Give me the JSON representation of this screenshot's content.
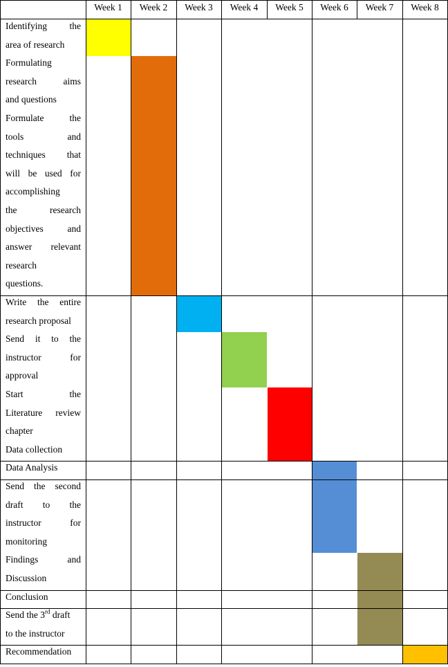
{
  "weeks": [
    "Week 1",
    "Week 2",
    "Week 3",
    "Week 4",
    "Week 5",
    "Week 6",
    "Week 7",
    "Week 8"
  ],
  "tasks": [
    {
      "lines": [
        "Identifying the",
        "area of research"
      ]
    },
    {
      "lines": [
        "Formulating",
        "research aims",
        "and questions"
      ]
    },
    {
      "lines": [
        "Formulate the",
        "tools and",
        "techniques that",
        "will be used for",
        "accomplishing",
        "the research",
        "objectives and",
        "answer relevant",
        "research",
        "questions."
      ]
    },
    {
      "lines": [
        "Write the entire",
        "research proposal"
      ]
    },
    {
      "lines": [
        "Send it to the",
        "instructor for",
        "approval"
      ]
    },
    {
      "lines": [
        "Start the",
        "Literature review",
        "chapter"
      ]
    },
    {
      "lines": [
        "Data collection"
      ]
    },
    {
      "lines": [
        "Data Analysis"
      ]
    },
    {
      "lines": [
        "Send the second",
        "draft to the",
        "instructor for",
        "monitoring"
      ]
    },
    {
      "lines": [
        "Findings and",
        "Discussion"
      ]
    },
    {
      "lines": [
        "Conclusion"
      ]
    },
    {
      "lines": [
        "Send the 3",
        "to the instructor"
      ],
      "sup": "rd",
      "sup_suffix": " draft"
    },
    {
      "lines": [
        "Recommendation"
      ]
    }
  ],
  "bars": [
    {
      "tasks": [
        0
      ],
      "week": 1,
      "color": "#ffff00"
    },
    {
      "tasks": [
        1,
        2
      ],
      "week": 2,
      "color": "#e36c0a"
    },
    {
      "tasks": [
        3
      ],
      "week": 3,
      "color": "#00b0f0"
    },
    {
      "tasks": [
        4
      ],
      "week": 4,
      "color": "#92d050"
    },
    {
      "tasks": [
        5,
        6
      ],
      "week": 5,
      "color": "#ff0000"
    },
    {
      "tasks": [
        7,
        8
      ],
      "week": 6,
      "color": "#558ed5"
    },
    {
      "tasks": [
        9,
        10,
        11
      ],
      "week": 7,
      "color": "#948a54"
    },
    {
      "tasks": [
        12
      ],
      "week": 8,
      "color": "#ffc000"
    }
  ]
}
